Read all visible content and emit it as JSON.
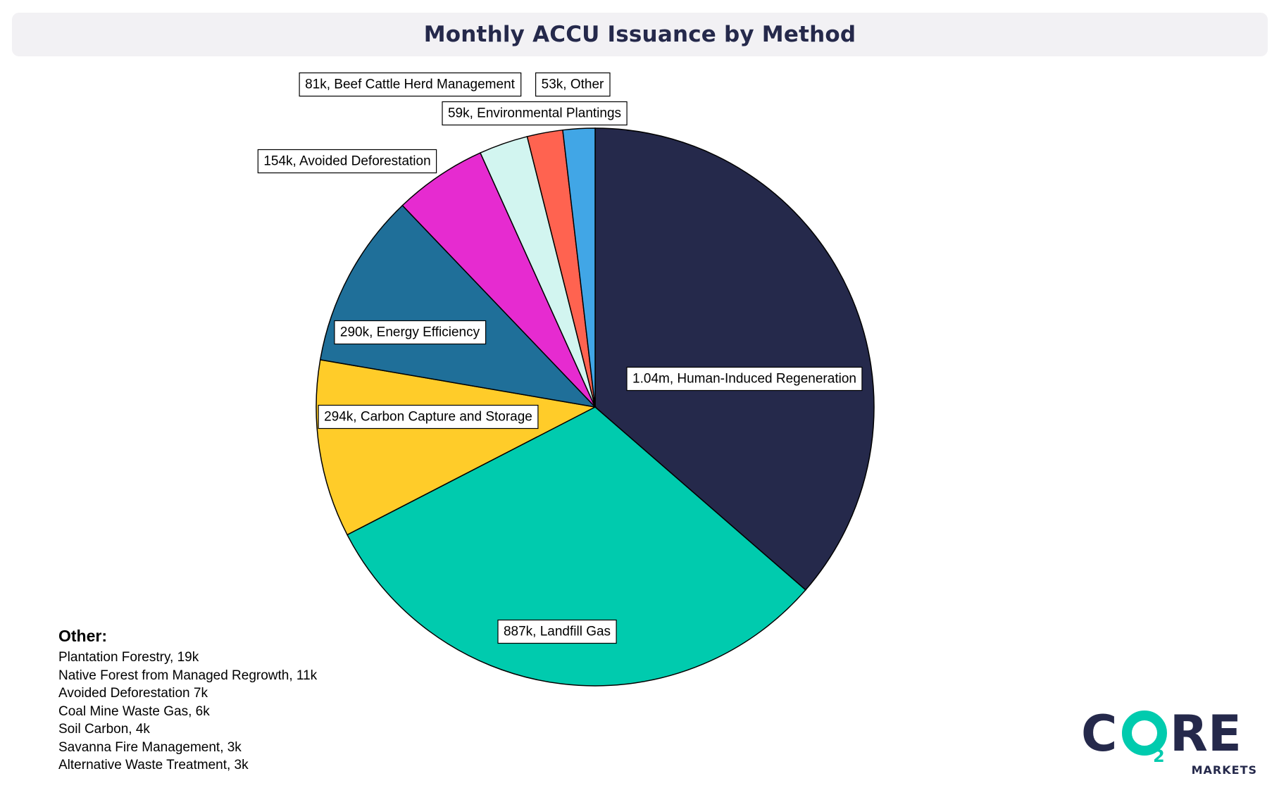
{
  "header": {
    "title": "Monthly ACCU Issuance by Method"
  },
  "colors": {
    "accent_dark": "#25294b",
    "accent_teal": "#00cbae"
  },
  "chart_data": {
    "type": "pie",
    "title": "Monthly ACCU Issuance by Method",
    "units": "ACCUs issued",
    "start_angle": "12 o'clock",
    "direction": "clockwise",
    "slices": [
      {
        "name": "Human-Induced Regeneration",
        "value": 1040000,
        "label": "1.04m, Human-Induced Regeneration",
        "color": "#25294b"
      },
      {
        "name": "Landfill Gas",
        "value": 887000,
        "label": "887k, Landfill Gas",
        "color": "#00cbae"
      },
      {
        "name": "Carbon Capture and Storage",
        "value": 294000,
        "label": "294k, Carbon Capture and Storage",
        "color": "#ffcc29"
      },
      {
        "name": "Energy Efficiency",
        "value": 290000,
        "label": "290k, Energy Efficiency",
        "color": "#1f6f99"
      },
      {
        "name": "Avoided Deforestation",
        "value": 154000,
        "label": "154k, Avoided Deforestation",
        "color": "#e62bd0"
      },
      {
        "name": "Beef Cattle Herd Management",
        "value": 81000,
        "label": "81k, Beef Cattle Herd Management",
        "color": "#d2f5f0"
      },
      {
        "name": "Environmental Plantings",
        "value": 59000,
        "label": "59k, Environmental Plantings",
        "color": "#ff6350"
      },
      {
        "name": "Other",
        "value": 53000,
        "label": "53k, Other",
        "color": "#41a6e6"
      }
    ],
    "other_breakdown": {
      "heading": "Other:",
      "items": [
        "Plantation Forestry, 19k",
        "Native Forest from Managed Regrowth, 11k",
        "Avoided Deforestation  7k",
        "Coal Mine Waste Gas, 6k",
        "Soil Carbon, 4k",
        "Savanna Fire Management, 3k",
        "Alternative Waste Treatment, 3k"
      ]
    }
  },
  "logo": {
    "letters": [
      "C",
      "O",
      "2",
      "R",
      "E"
    ],
    "subtitle": "MARKETS"
  }
}
